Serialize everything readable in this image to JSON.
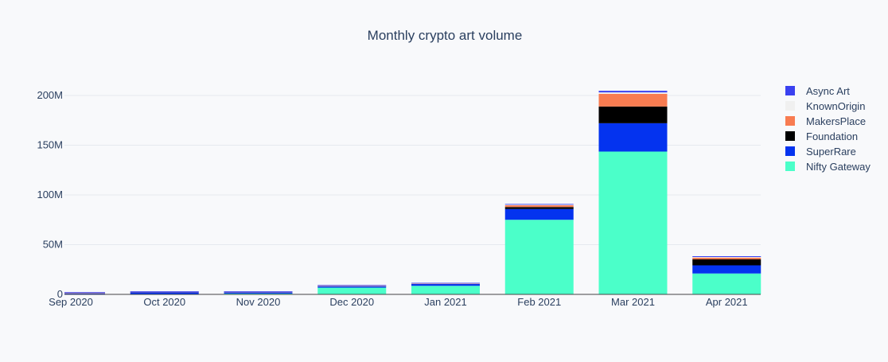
{
  "chart_data": {
    "type": "bar",
    "stacked": true,
    "title": "Monthly crypto art volume",
    "xlabel": "",
    "ylabel": "",
    "categories": [
      "Sep 2020",
      "Oct 2020",
      "Nov 2020",
      "Dec 2020",
      "Jan 2021",
      "Feb 2021",
      "Mar 2021",
      "Apr 2021"
    ],
    "ylim": [
      0,
      220000000
    ],
    "yticks": [
      0,
      50000000,
      100000000,
      150000000,
      200000000
    ],
    "ytick_labels": [
      "0",
      "50M",
      "100M",
      "150M",
      "200M"
    ],
    "grid": true,
    "legend_position": "right",
    "series": [
      {
        "name": "Nifty Gateway",
        "color": "#4bffc9",
        "values": [
          300000,
          200000,
          800000,
          6800000,
          8600000,
          75000000,
          143600000,
          21000000
        ]
      },
      {
        "name": "SuperRare",
        "color": "#0433ef",
        "values": [
          1000000,
          2300000,
          1600000,
          1500000,
          1900000,
          10800000,
          28500000,
          8200000
        ]
      },
      {
        "name": "Foundation",
        "color": "#000000",
        "values": [
          0,
          0,
          0,
          0,
          0,
          2000000,
          16800000,
          6000000
        ]
      },
      {
        "name": "MakersPlace",
        "color": "#f87c51",
        "values": [
          400000,
          300000,
          300000,
          500000,
          500000,
          1800000,
          12700000,
          1800000
        ]
      },
      {
        "name": "KnownOrigin",
        "color": "#f0f0f0",
        "values": [
          300000,
          200000,
          200000,
          300000,
          300000,
          600000,
          1500000,
          600000
        ]
      },
      {
        "name": "Async Art",
        "color": "#3a41f0",
        "values": [
          300000,
          200000,
          200000,
          300000,
          300000,
          700000,
          1600000,
          800000
        ]
      }
    ],
    "legend_order": [
      "Async Art",
      "KnownOrigin",
      "MakersPlace",
      "Foundation",
      "SuperRare",
      "Nifty Gateway"
    ]
  }
}
